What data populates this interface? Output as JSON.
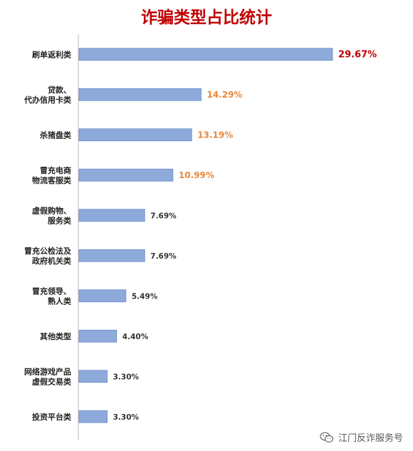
{
  "chart_data": {
    "type": "bar",
    "orientation": "horizontal",
    "title": "诈骗类型占比统计",
    "categories": [
      [
        "刷单返利类"
      ],
      [
        "贷款、",
        "代办信用卡类"
      ],
      [
        "杀猪盘类"
      ],
      [
        "冒充电商",
        "物流客服类"
      ],
      [
        "虚假购物、",
        "服务类"
      ],
      [
        "冒充公检法及",
        "政府机关类"
      ],
      [
        "冒充领导、",
        "熟人类"
      ],
      [
        "其他类型"
      ],
      [
        "网络游戏产品",
        "虚假交易类"
      ],
      [
        "投资平台类"
      ]
    ],
    "values": [
      29.67,
      14.29,
      13.19,
      10.99,
      7.69,
      7.69,
      5.49,
      4.4,
      3.3,
      3.3
    ],
    "value_labels": [
      "29.67%",
      "14.29%",
      "13.19%",
      "10.99%",
      "7.69%",
      "7.69%",
      "5.49%",
      "4.40%",
      "3.30%",
      "3.30%"
    ],
    "value_label_colors": [
      "#c00000",
      "#e8873a",
      "#e8873a",
      "#e8873a",
      "#333333",
      "#333333",
      "#333333",
      "#333333",
      "#333333",
      "#333333"
    ],
    "bar_color": "#8eaadb",
    "bar_border_color": "#6d8fc9",
    "xlim": [
      0,
      31.5
    ],
    "grid": false,
    "legend": "none"
  },
  "watermark": {
    "text": "江门反诈服务号",
    "icon": "wechat-icon"
  }
}
